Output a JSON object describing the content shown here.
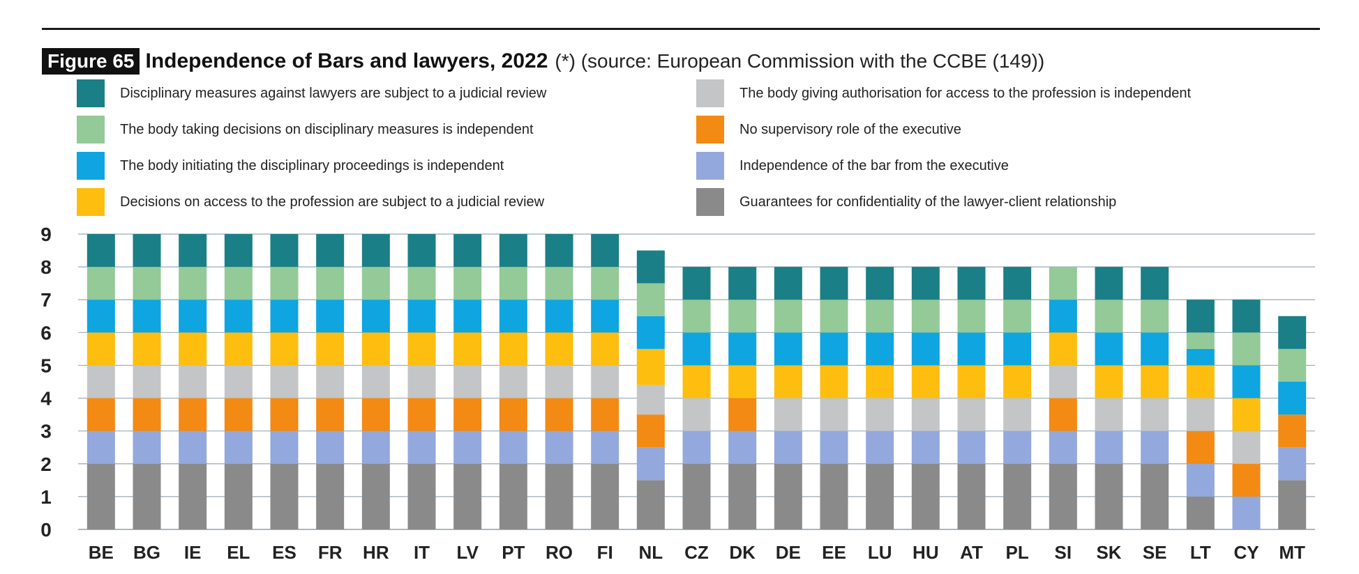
{
  "figure": {
    "label": "Figure 65",
    "title": "Independence of Bars and lawyers, 2022",
    "subtitle": "(*) (source: European Commission with the CCBE (149))"
  },
  "legend": {
    "items": [
      {
        "label": "Disciplinary measures against lawyers are subject to a judicial review",
        "color": "#1a7f86"
      },
      {
        "label": "The body giving authorisation for access to the profession is independent",
        "color": "#c3c5c6"
      },
      {
        "label": "The body taking decisions on disciplinary measures is independent",
        "color": "#94c998"
      },
      {
        "label": "No supervisory role of the executive",
        "color": "#f28a14"
      },
      {
        "label": "The body initiating the disciplinary proceedings is independent",
        "color": "#0ea5e0"
      },
      {
        "label": "Independence of the bar from the executive",
        "color": "#93a8dc"
      },
      {
        "label": "Decisions on access to the profession are subject to a judicial review",
        "color": "#fdbe0f"
      },
      {
        "label": "Guarantees for confidentiality of the lawyer-client relationship",
        "color": "#8a8a8a"
      }
    ]
  },
  "chart_data": {
    "type": "bar",
    "stacked": true,
    "ylim": [
      0,
      9
    ],
    "yticks": [
      "0",
      "1",
      "2",
      "3",
      "4",
      "5",
      "6",
      "7",
      "8",
      "9"
    ],
    "grid": true,
    "categories": [
      "BE",
      "BG",
      "IE",
      "EL",
      "ES",
      "FR",
      "HR",
      "IT",
      "LV",
      "PT",
      "RO",
      "FI",
      "NL",
      "CZ",
      "DK",
      "DE",
      "EE",
      "LU",
      "HU",
      "AT",
      "PL",
      "SI",
      "SK",
      "SE",
      "LT",
      "CY",
      "MT"
    ],
    "series": [
      {
        "name": "Guarantees for confidentiality of the lawyer-client relationship",
        "color": "#8a8a8a",
        "values": [
          2,
          2,
          2,
          2,
          2,
          2,
          2,
          2,
          2,
          2,
          2,
          2,
          1.5,
          2,
          2,
          2,
          2,
          2,
          2,
          2,
          2,
          2,
          2,
          2,
          1,
          0,
          1.5
        ]
      },
      {
        "name": "Independence of the bar from the executive",
        "color": "#93a8dc",
        "values": [
          1,
          1,
          1,
          1,
          1,
          1,
          1,
          1,
          1,
          1,
          1,
          1,
          1,
          1,
          1,
          1,
          1,
          1,
          1,
          1,
          1,
          1,
          1,
          1,
          1,
          1,
          1
        ]
      },
      {
        "name": "No supervisory role of the executive",
        "color": "#f28a14",
        "values": [
          1,
          1,
          1,
          1,
          1,
          1,
          1,
          1,
          1,
          1,
          1,
          1,
          1,
          0,
          1,
          0,
          0,
          0,
          0,
          0,
          0,
          1,
          0,
          0,
          1,
          1,
          1
        ]
      },
      {
        "name": "The body giving authorisation for access to the profession is independent",
        "color": "#c3c5c6",
        "values": [
          1,
          1,
          1,
          1,
          1,
          1,
          1,
          1,
          1,
          1,
          1,
          1,
          0.9,
          1,
          0,
          1,
          1,
          1,
          1,
          1,
          1,
          1,
          1,
          1,
          1,
          1,
          0
        ]
      },
      {
        "name": "Decisions on access to the profession are subject to a judicial review",
        "color": "#fdbe0f",
        "values": [
          1,
          1,
          1,
          1,
          1,
          1,
          1,
          1,
          1,
          1,
          1,
          1,
          1.1,
          1,
          1,
          1,
          1,
          1,
          1,
          1,
          1,
          1,
          1,
          1,
          1,
          1,
          0
        ]
      },
      {
        "name": "The body initiating the disciplinary proceedings is independent",
        "color": "#0ea5e0",
        "values": [
          1,
          1,
          1,
          1,
          1,
          1,
          1,
          1,
          1,
          1,
          1,
          1,
          1,
          1,
          1,
          1,
          1,
          1,
          1,
          1,
          1,
          1,
          1,
          1,
          0.5,
          1,
          1
        ]
      },
      {
        "name": "The body taking decisions on disciplinary measures is independent",
        "color": "#94c998",
        "values": [
          1,
          1,
          1,
          1,
          1,
          1,
          1,
          1,
          1,
          1,
          1,
          1,
          1,
          1,
          1,
          1,
          1,
          1,
          1,
          1,
          1,
          1,
          1,
          1,
          0.5,
          1,
          1
        ]
      },
      {
        "name": "Disciplinary measures against lawyers are subject to a judicial review",
        "color": "#1a7f86",
        "values": [
          1,
          1,
          1,
          1,
          1,
          1,
          1,
          1,
          1,
          1,
          1,
          1,
          1,
          1,
          1,
          1,
          1,
          1,
          1,
          1,
          1,
          0,
          1,
          1,
          1,
          1,
          1
        ]
      }
    ]
  }
}
